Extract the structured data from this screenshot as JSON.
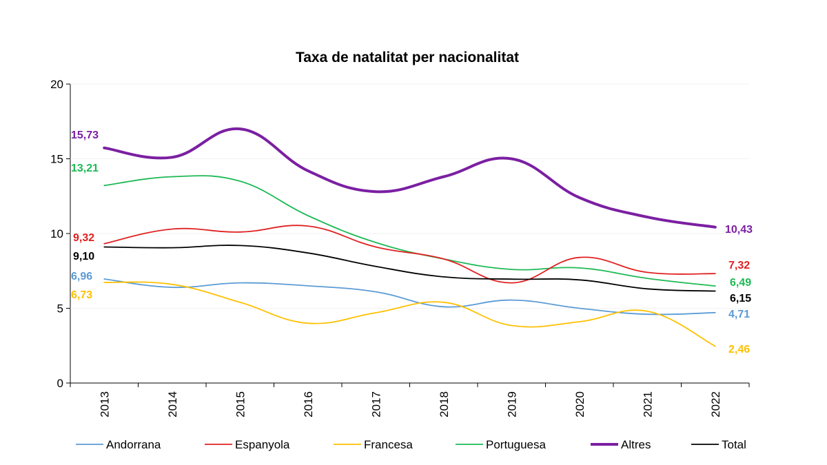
{
  "chart_data": {
    "type": "line",
    "title": "Taxa de natalitat per nacionalitat",
    "xlabel": "",
    "ylabel": "",
    "ylim": [
      0,
      20
    ],
    "yticks": [
      "0",
      "5",
      "10",
      "15",
      "20"
    ],
    "categories": [
      "2013",
      "2014",
      "2015",
      "2016",
      "2017",
      "2018",
      "2019",
      "2020",
      "2021",
      "2022"
    ],
    "grid": false,
    "legend_position": "bottom",
    "series": [
      {
        "name": "Andorrana",
        "color": "#5B9BD5",
        "width": "thin",
        "values": [
          6.96,
          6.4,
          6.7,
          6.5,
          6.1,
          5.1,
          5.55,
          5.0,
          4.6,
          4.71
        ],
        "start_label": "6,96",
        "end_label": "4,71"
      },
      {
        "name": "Espanyola",
        "color": "#E02020",
        "width": "thin",
        "values": [
          9.32,
          10.3,
          10.1,
          10.5,
          9.1,
          8.3,
          6.7,
          8.4,
          7.4,
          7.32
        ],
        "start_label": "9,32",
        "end_label": "7,32"
      },
      {
        "name": "Francesa",
        "color": "#FFC000",
        "width": "thin",
        "values": [
          6.73,
          6.6,
          5.4,
          4.0,
          4.7,
          5.4,
          3.85,
          4.1,
          4.8,
          2.46
        ],
        "start_label": "6,73",
        "end_label": "2,46"
      },
      {
        "name": "Portuguesa",
        "color": "#1DB954",
        "width": "thin",
        "values": [
          13.21,
          13.8,
          13.5,
          11.2,
          9.4,
          8.3,
          7.6,
          7.7,
          7.0,
          6.49
        ],
        "start_label": "13,21",
        "end_label": "6,49"
      },
      {
        "name": "Altres",
        "color": "#7B1FA2",
        "width": "thick",
        "values": [
          15.73,
          15.1,
          17.0,
          14.2,
          12.8,
          13.8,
          15.0,
          12.4,
          11.1,
          10.43
        ],
        "start_label": "15,73",
        "end_label": "10,43"
      },
      {
        "name": "Total",
        "color": "#000000",
        "width": "thin",
        "values": [
          9.1,
          9.05,
          9.2,
          8.7,
          7.8,
          7.1,
          6.95,
          6.9,
          6.3,
          6.15
        ],
        "start_label": "9,10",
        "end_label": "6,15"
      }
    ]
  }
}
